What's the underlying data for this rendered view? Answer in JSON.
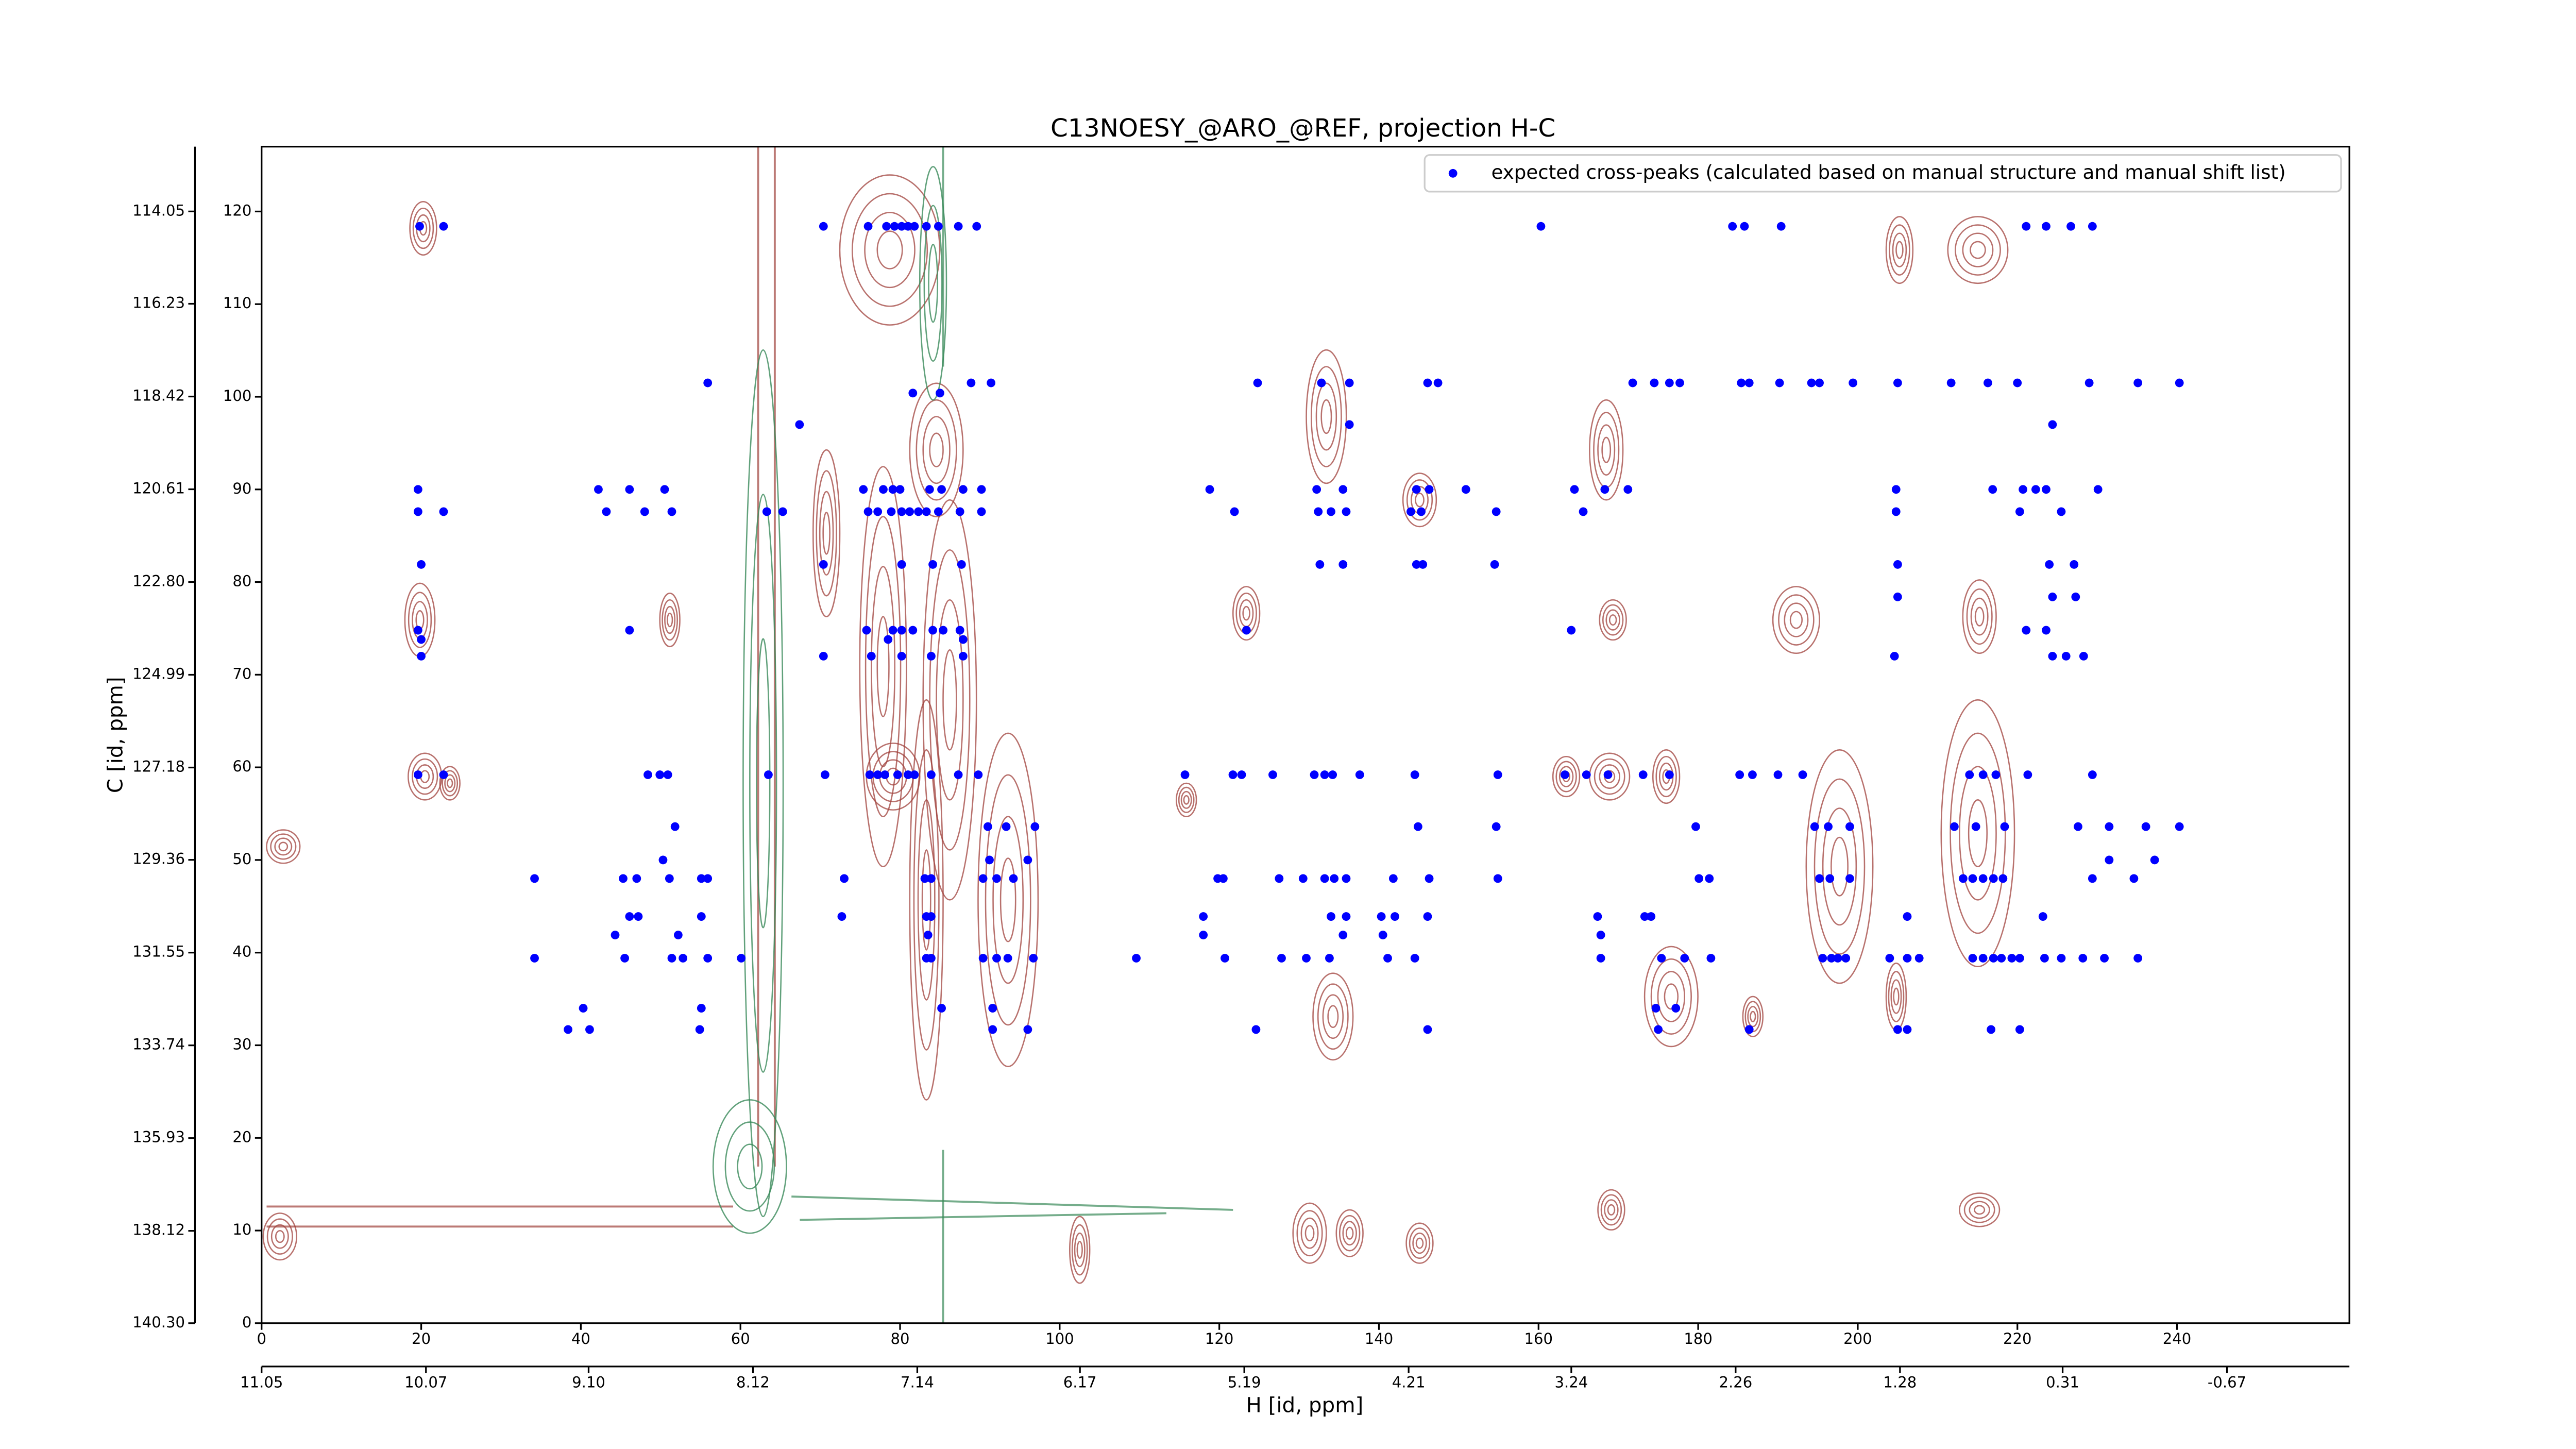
{
  "chart_data": {
    "type": "scatter",
    "title": "C13NOESY_@ARO_@REF, projection H-C",
    "xlabel": "H [id, ppm]",
    "ylabel": "C [id, ppm]",
    "xlim": [
      0,
      261.6
    ],
    "xticks": [
      0,
      20,
      40,
      60,
      80,
      100,
      120,
      140,
      160,
      180,
      200,
      220,
      240
    ],
    "ylim": [
      0,
      127
    ],
    "yticks": [
      0,
      10,
      20,
      30,
      40,
      50,
      60,
      70,
      80,
      90,
      100,
      110,
      120
    ],
    "x2lim": [
      11.05,
      -1.4
    ],
    "x2ticks": [
      11.05,
      10.07,
      {
        "value": 9.1,
        "label": "9.10"
      },
      8.12,
      7.14,
      6.17,
      5.19,
      4.21,
      3.24,
      2.26,
      1.28,
      0.31,
      -0.67
    ],
    "y2lim": [
      140.3,
      112.52
    ],
    "y2ticks": [
      {
        "value": 140.3,
        "label": "140.30"
      },
      138.12,
      135.93,
      133.74,
      131.55,
      129.36,
      127.18,
      124.99,
      {
        "value": 122.8,
        "label": "122.80"
      },
      120.61,
      118.42,
      116.23,
      114.05
    ],
    "legend": "upper right",
    "series": [
      {
        "name": "expected cross-peaks (calculated based on manual structure and manual shift list)",
        "color": "#0000ff",
        "x": [
          19.8,
          22.8,
          70.4,
          76,
          78.3,
          79.3,
          80.2,
          81,
          81.8,
          83.3,
          84.8,
          87.3,
          89.6,
          160.3,
          184.3,
          185.8,
          190.4,
          221.1,
          223.6,
          226.7,
          229.4,
          55.9,
          91.4,
          88.9,
          124.8,
          132.8,
          136.3,
          146.1,
          147.4,
          171.8,
          174.5,
          176.4,
          177.7,
          185.4,
          186.4,
          190.2,
          194.2,
          195.2,
          199.4,
          205,
          211.7,
          216.3,
          220,
          229,
          235.1,
          240.3,
          81.6,
          85,
          67.4,
          136.3,
          224.4,
          19.6,
          42.2,
          46.1,
          50.5,
          75.4,
          77.9,
          79.1,
          80,
          83.7,
          85.2,
          87.9,
          90.2,
          118.8,
          132.2,
          135.5,
          144.7,
          146.3,
          150.9,
          164.5,
          168.3,
          171.2,
          204.8,
          216.9,
          220.7,
          222.3,
          223.6,
          230.1,
          19.6,
          22.8,
          43.2,
          48,
          51.4,
          63.3,
          65.3,
          76,
          77.2,
          78.9,
          80.2,
          81.2,
          82.3,
          83.3,
          84.8,
          87.5,
          90.2,
          121.9,
          132.4,
          134,
          135.9,
          144,
          145.3,
          154.7,
          165.6,
          204.8,
          220.3,
          225.5,
          20,
          70.4,
          80.2,
          84.1,
          87.7,
          132.6,
          135.5,
          144.7,
          145.5,
          154.5,
          205,
          224,
          227.1,
          224.4,
          227.3,
          205,
          19.6,
          46.1,
          75.8,
          79.1,
          80.2,
          81.6,
          84.1,
          85.4,
          87.5,
          123.4,
          164.1,
          221.1,
          223.6,
          20,
          78.5,
          87.9,
          20,
          70.4,
          76.4,
          80.2,
          83.9,
          87.9,
          204.6,
          224.4,
          226.1,
          228.3,
          19.6,
          22.8,
          48.4,
          49.9,
          50.9,
          63.5,
          70.6,
          76.2,
          77.2,
          78.1,
          79.7,
          81,
          81.8,
          83.9,
          87.3,
          89.8,
          115.7,
          121.7,
          122.8,
          126.7,
          131.9,
          133.2,
          134.2,
          137.6,
          144.5,
          154.9,
          163.3,
          166,
          168.7,
          173.1,
          176.4,
          185.2,
          186.8,
          190,
          193.1,
          214,
          215.7,
          217.3,
          221.3,
          229.4,
          51.8,
          91,
          93.3,
          96.9,
          144.9,
          154.7,
          179.7,
          194.6,
          196.3,
          199,
          212.1,
          214.8,
          218.4,
          227.6,
          231.5,
          236.1,
          240.3,
          50.3,
          91.2,
          96,
          231.5,
          237.2,
          34.2,
          45.3,
          47,
          51.1,
          55.1,
          55.9,
          73,
          83.1,
          83.9,
          90.4,
          92.1,
          94.2,
          119.8,
          120.5,
          127.5,
          130.5,
          133.2,
          134.4,
          135.9,
          141.8,
          146.3,
          154.9,
          180.1,
          181.4,
          195.2,
          196.5,
          199,
          213.2,
          214.4,
          215.7,
          217,
          218.2,
          229.4,
          234.6,
          46.1,
          47.2,
          55.1,
          72.7,
          83.3,
          83.9,
          118,
          134,
          135.9,
          140.3,
          142,
          146.1,
          167.4,
          173.3,
          174.1,
          206.2,
          223.2,
          44.3,
          52.2,
          83.5,
          118,
          135.5,
          140.5,
          167.8,
          34.2,
          45.5,
          51.4,
          52.8,
          55.9,
          60.1,
          83.3,
          83.9,
          90.4,
          92.1,
          93.5,
          96.7,
          109.6,
          120.7,
          127.8,
          130.9,
          133.8,
          141.1,
          144.5,
          167.8,
          175.4,
          178.3,
          181.6,
          195.6,
          196.7,
          197.5,
          198.5,
          204,
          206.2,
          207.7,
          214.4,
          215.7,
          217,
          218,
          219.3,
          220.3,
          223.4,
          225.5,
          228.2,
          230.9,
          235.1,
          40.3,
          55.1,
          85.2,
          91.6,
          174.7,
          177.2,
          38.4,
          41.1,
          54.9,
          91.6,
          96,
          124.6,
          146.1,
          175,
          186.4,
          205,
          206.2,
          216.7,
          220.3
        ],
        "values": [
          118.4,
          118.4,
          118.4,
          118.4,
          118.4,
          118.4,
          118.4,
          118.4,
          118.4,
          118.4,
          118.4,
          118.4,
          118.4,
          118.4,
          118.4,
          118.4,
          118.4,
          118.4,
          118.4,
          118.4,
          118.4,
          101.5,
          101.5,
          101.5,
          101.5,
          101.5,
          101.5,
          101.5,
          101.5,
          101.5,
          101.5,
          101.5,
          101.5,
          101.5,
          101.5,
          101.5,
          101.5,
          101.5,
          101.5,
          101.5,
          101.5,
          101.5,
          101.5,
          101.5,
          101.5,
          101.5,
          100.4,
          100.4,
          97,
          97,
          97,
          90,
          90,
          90,
          90,
          90,
          90,
          90,
          90,
          90,
          90,
          90,
          90,
          90,
          90,
          90,
          90,
          90,
          90,
          90,
          90,
          90,
          90,
          90,
          90,
          90,
          90,
          90,
          87.6,
          87.6,
          87.6,
          87.6,
          87.6,
          87.6,
          87.6,
          87.6,
          87.6,
          87.6,
          87.6,
          87.6,
          87.6,
          87.6,
          87.6,
          87.6,
          87.6,
          87.6,
          87.6,
          87.6,
          87.6,
          87.6,
          87.6,
          87.6,
          87.6,
          87.6,
          87.6,
          87.6,
          81.9,
          81.9,
          81.9,
          81.9,
          81.9,
          81.9,
          81.9,
          81.9,
          81.9,
          81.9,
          81.9,
          81.9,
          81.9,
          78.4,
          78.4,
          78.4,
          74.8,
          74.8,
          74.8,
          74.8,
          74.8,
          74.8,
          74.8,
          74.8,
          74.8,
          74.8,
          74.8,
          74.8,
          74.8,
          73.8,
          73.8,
          73.8,
          72,
          72,
          72,
          72,
          72,
          72,
          72,
          72,
          72,
          72,
          59.2,
          59.2,
          59.2,
          59.2,
          59.2,
          59.2,
          59.2,
          59.2,
          59.2,
          59.2,
          59.2,
          59.2,
          59.2,
          59.2,
          59.2,
          59.2,
          59.2,
          59.2,
          59.2,
          59.2,
          59.2,
          59.2,
          59.2,
          59.2,
          59.2,
          59.2,
          59.2,
          59.2,
          59.2,
          59.2,
          59.2,
          59.2,
          59.2,
          59.2,
          59.2,
          59.2,
          59.2,
          59.2,
          59.2,
          59.2,
          53.6,
          53.6,
          53.6,
          53.6,
          53.6,
          53.6,
          53.6,
          53.6,
          53.6,
          53.6,
          53.6,
          53.6,
          53.6,
          53.6,
          53.6,
          53.6,
          53.6,
          50,
          50,
          50,
          50,
          50,
          48,
          48,
          48,
          48,
          48,
          48,
          48,
          48,
          48,
          48,
          48,
          48,
          48,
          48,
          48,
          48,
          48,
          48,
          48,
          48,
          48,
          48,
          48,
          48,
          48,
          48,
          48,
          48,
          48,
          48,
          48,
          48,
          48,
          48,
          43.9,
          43.9,
          43.9,
          43.9,
          43.9,
          43.9,
          43.9,
          43.9,
          43.9,
          43.9,
          43.9,
          43.9,
          43.9,
          43.9,
          43.9,
          43.9,
          43.9,
          41.9,
          41.9,
          41.9,
          41.9,
          41.9,
          41.9,
          41.9,
          39.4,
          39.4,
          39.4,
          39.4,
          39.4,
          39.4,
          39.4,
          39.4,
          39.4,
          39.4,
          39.4,
          39.4,
          39.4,
          39.4,
          39.4,
          39.4,
          39.4,
          39.4,
          39.4,
          39.4,
          39.4,
          39.4,
          39.4,
          39.4,
          39.4,
          39.4,
          39.4,
          39.4,
          39.4,
          39.4,
          39.4,
          39.4,
          39.4,
          39.4,
          39.4,
          39.4,
          39.4,
          39.4,
          39.4,
          39.4,
          39.4,
          34,
          34,
          34,
          34,
          34,
          34,
          31.7,
          31.7,
          31.7,
          31.7,
          31.7,
          31.7,
          31.7,
          31.7,
          31.7,
          31.7,
          31.7,
          31.7,
          31.7
        ]
      }
    ]
  }
}
